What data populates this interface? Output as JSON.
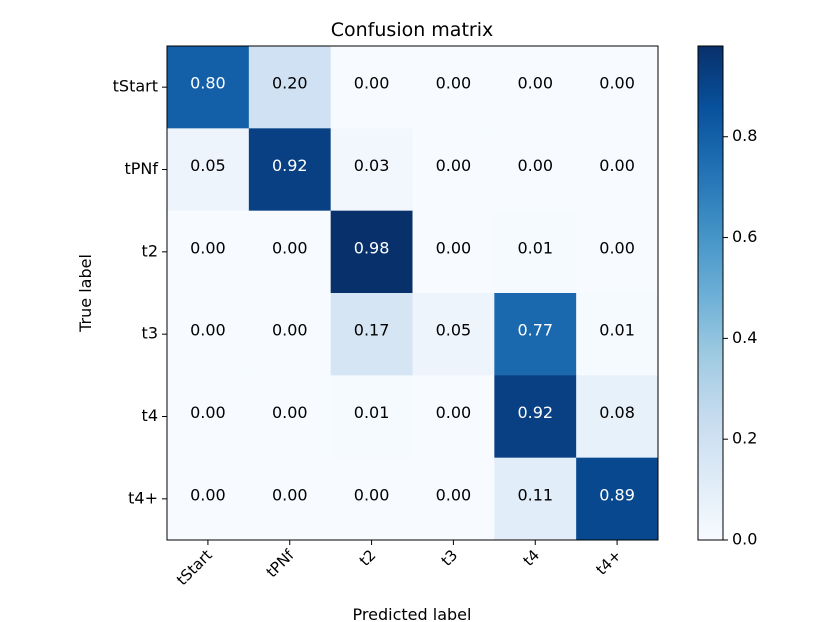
{
  "chart_data": {
    "type": "heatmap",
    "title": "Confusion matrix",
    "xlabel": "Predicted label",
    "ylabel": "True label",
    "x_categories": [
      "tStart",
      "tPNf",
      "t2",
      "t3",
      "t4",
      "t4+"
    ],
    "y_categories": [
      "tStart",
      "tPNf",
      "t2",
      "t3",
      "t4",
      "t4+"
    ],
    "values": [
      [
        0.8,
        0.2,
        0.0,
        0.0,
        0.0,
        0.0
      ],
      [
        0.05,
        0.92,
        0.03,
        0.0,
        0.0,
        0.0
      ],
      [
        0.0,
        0.0,
        0.98,
        0.0,
        0.01,
        0.0
      ],
      [
        0.0,
        0.0,
        0.17,
        0.05,
        0.77,
        0.01
      ],
      [
        0.0,
        0.0,
        0.01,
        0.0,
        0.92,
        0.08
      ],
      [
        0.0,
        0.0,
        0.0,
        0.0,
        0.11,
        0.89
      ]
    ],
    "colormap": "Blues",
    "colorbar": {
      "range": [
        0.0,
        0.98
      ],
      "ticks": [
        0.0,
        0.2,
        0.4,
        0.6,
        0.8
      ],
      "tick_labels": [
        "0.0",
        "0.2",
        "0.4",
        "0.6",
        "0.8"
      ]
    },
    "text_threshold": 0.49,
    "colors": {
      "light_text": "#ffffff",
      "dark_text": "#000000",
      "axis": "#000000"
    }
  }
}
